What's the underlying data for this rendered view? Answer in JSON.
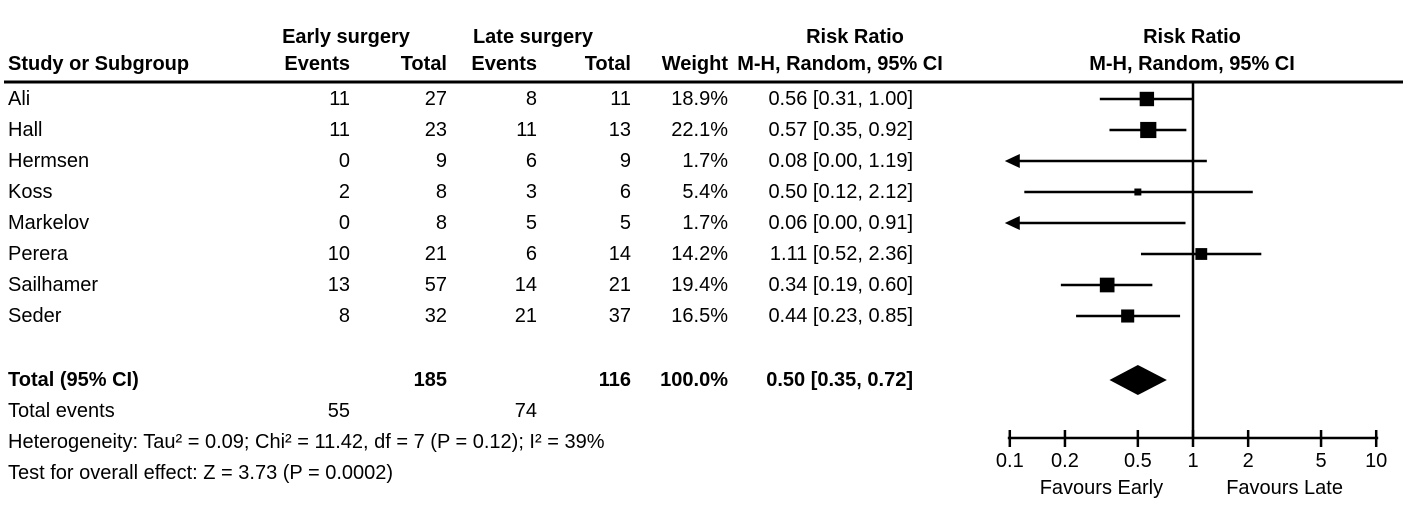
{
  "headers": {
    "early_group": "Early surgery",
    "late_group": "Late surgery",
    "risk_ratio_text_col": "Risk Ratio",
    "risk_ratio_plot_col": "Risk Ratio",
    "mh_text_col": "M-H, Random, 95% CI",
    "mh_plot_col": "M-H, Random, 95% CI",
    "study": "Study or Subgroup",
    "events": "Events",
    "total": "Total",
    "weight": "Weight"
  },
  "chart_data": {
    "type": "scatter",
    "subtype": "forest-plot",
    "effect_measure": "Risk Ratio (M-H, Random, 95% CI)",
    "x_scale": "log10",
    "xlim": [
      0.1,
      10
    ],
    "x_tick_values": [
      0.1,
      0.2,
      0.5,
      1,
      2,
      5,
      10
    ],
    "x_tick_labels": [
      "0.1",
      "0.2",
      "0.5",
      "1",
      "2",
      "5",
      "10"
    ],
    "null_line": 1,
    "favours_left": "Favours Early",
    "favours_right": "Favours Late",
    "studies": [
      {
        "name": "Ali",
        "events_early": 11,
        "total_early": 27,
        "events_late": 8,
        "total_late": 11,
        "weight_label": "18.9%",
        "weight_pct": 18.9,
        "rr": 0.56,
        "ci_low": 0.31,
        "ci_high": 1.0,
        "ci_label": "0.56 [0.31, 1.00]"
      },
      {
        "name": "Hall",
        "events_early": 11,
        "total_early": 23,
        "events_late": 11,
        "total_late": 13,
        "weight_label": "22.1%",
        "weight_pct": 22.1,
        "rr": 0.57,
        "ci_low": 0.35,
        "ci_high": 0.92,
        "ci_label": "0.57 [0.35, 0.92]"
      },
      {
        "name": "Hermsen",
        "events_early": 0,
        "total_early": 9,
        "events_late": 6,
        "total_late": 9,
        "weight_label": "1.7%",
        "weight_pct": 1.7,
        "rr": 0.08,
        "ci_low": 0.0,
        "ci_high": 1.19,
        "ci_label": "0.08 [0.00, 1.19]"
      },
      {
        "name": "Koss",
        "events_early": 2,
        "total_early": 8,
        "events_late": 3,
        "total_late": 6,
        "weight_label": "5.4%",
        "weight_pct": 5.4,
        "rr": 0.5,
        "ci_low": 0.12,
        "ci_high": 2.12,
        "ci_label": "0.50 [0.12, 2.12]"
      },
      {
        "name": "Markelov",
        "events_early": 0,
        "total_early": 8,
        "events_late": 5,
        "total_late": 5,
        "weight_label": "1.7%",
        "weight_pct": 1.7,
        "rr": 0.06,
        "ci_low": 0.0,
        "ci_high": 0.91,
        "ci_label": "0.06 [0.00, 0.91]"
      },
      {
        "name": "Perera",
        "events_early": 10,
        "total_early": 21,
        "events_late": 6,
        "total_late": 14,
        "weight_label": "14.2%",
        "weight_pct": 14.2,
        "rr": 1.11,
        "ci_low": 0.52,
        "ci_high": 2.36,
        "ci_label": "1.11 [0.52, 2.36]"
      },
      {
        "name": "Sailhamer",
        "events_early": 13,
        "total_early": 57,
        "events_late": 14,
        "total_late": 21,
        "weight_label": "19.4%",
        "weight_pct": 19.4,
        "rr": 0.34,
        "ci_low": 0.19,
        "ci_high": 0.6,
        "ci_label": "0.34 [0.19, 0.60]"
      },
      {
        "name": "Seder",
        "events_early": 8,
        "total_early": 32,
        "events_late": 21,
        "total_late": 37,
        "weight_label": "16.5%",
        "weight_pct": 16.5,
        "rr": 0.44,
        "ci_low": 0.23,
        "ci_high": 0.85,
        "ci_label": "0.44 [0.23, 0.85]"
      }
    ],
    "total": {
      "label": "Total (95% CI)",
      "total_early": 185,
      "total_late": 116,
      "weight_label": "100.0%",
      "rr": 0.5,
      "ci_low": 0.35,
      "ci_high": 0.72,
      "ci_label": "0.50 [0.35, 0.72]"
    },
    "total_events": {
      "label": "Total events",
      "early": 55,
      "late": 74
    }
  },
  "footnotes": {
    "heterogeneity": "Heterogeneity: Tau² = 0.09; Chi² = 11.42, df = 7 (P = 0.12); I² = 39%",
    "overall_effect": "Test for overall effect: Z = 3.73 (P = 0.0002)"
  },
  "colors": {
    "foreground": "#000000",
    "background": "#ffffff"
  }
}
